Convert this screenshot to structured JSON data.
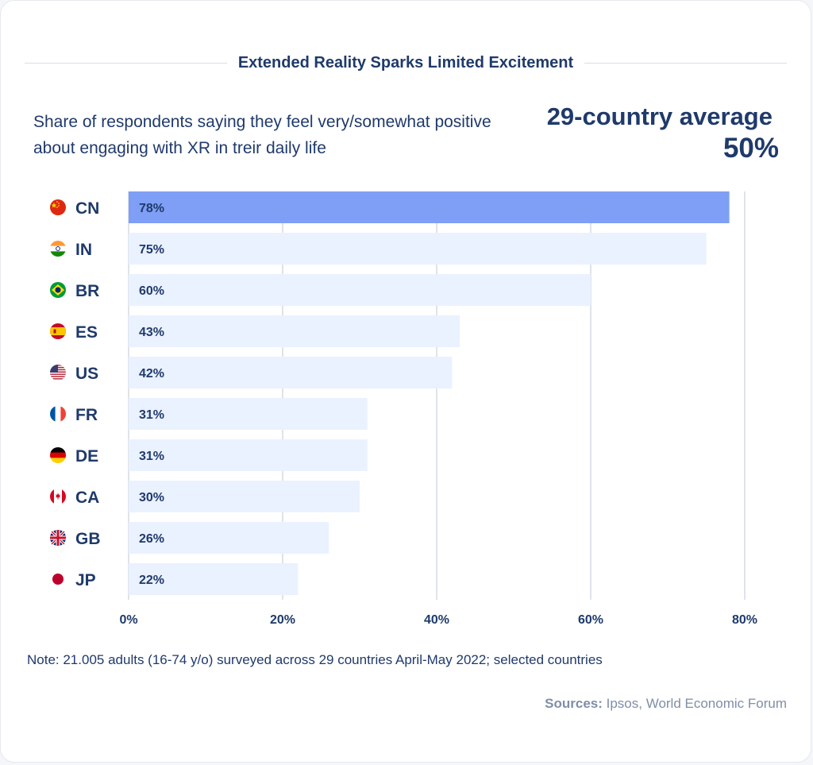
{
  "header": {
    "title": "Extended Reality Sparks Limited Excitement",
    "subtitle": "Share of respondents saying they feel very/somewhat positive about engaging with XR in treir daily life",
    "average_label": "29-country average",
    "average_value": "50%"
  },
  "chart_data": {
    "type": "bar",
    "orientation": "horizontal",
    "title": "Extended Reality Sparks Limited Excitement",
    "categories": [
      "CN",
      "IN",
      "BR",
      "ES",
      "US",
      "FR",
      "DE",
      "CA",
      "GB",
      "JP"
    ],
    "values": [
      78,
      75,
      60,
      43,
      42,
      31,
      31,
      30,
      26,
      22
    ],
    "value_labels": [
      "78%",
      "75%",
      "60%",
      "43%",
      "42%",
      "31%",
      "31%",
      "30%",
      "26%",
      "22%"
    ],
    "highlight_category": "CN",
    "xlim": [
      0,
      80
    ],
    "xticks": [
      0,
      20,
      40,
      60,
      80
    ],
    "xtick_labels": [
      "0%",
      "20%",
      "40%",
      "60%",
      "80%"
    ],
    "grid": true,
    "xlabel": "",
    "ylabel": ""
  },
  "colors": {
    "highlight_bar": "#7f9ef5",
    "bar": "#eaf1ff",
    "grid": "#dfe3ea",
    "text": "#1f3a6b"
  },
  "flags": [
    "flag-china-icon",
    "flag-india-icon",
    "flag-brazil-icon",
    "flag-spain-icon",
    "flag-usa-icon",
    "flag-france-icon",
    "flag-germany-icon",
    "flag-canada-icon",
    "flag-uk-icon",
    "flag-japan-icon"
  ],
  "footer": {
    "note": "Note: 21.005 adults (16-74 y/o) surveyed across 29 countries April-May 2022; selected countries",
    "sources_label": "Sources:",
    "sources_text": "Ipsos, World Economic Forum"
  }
}
